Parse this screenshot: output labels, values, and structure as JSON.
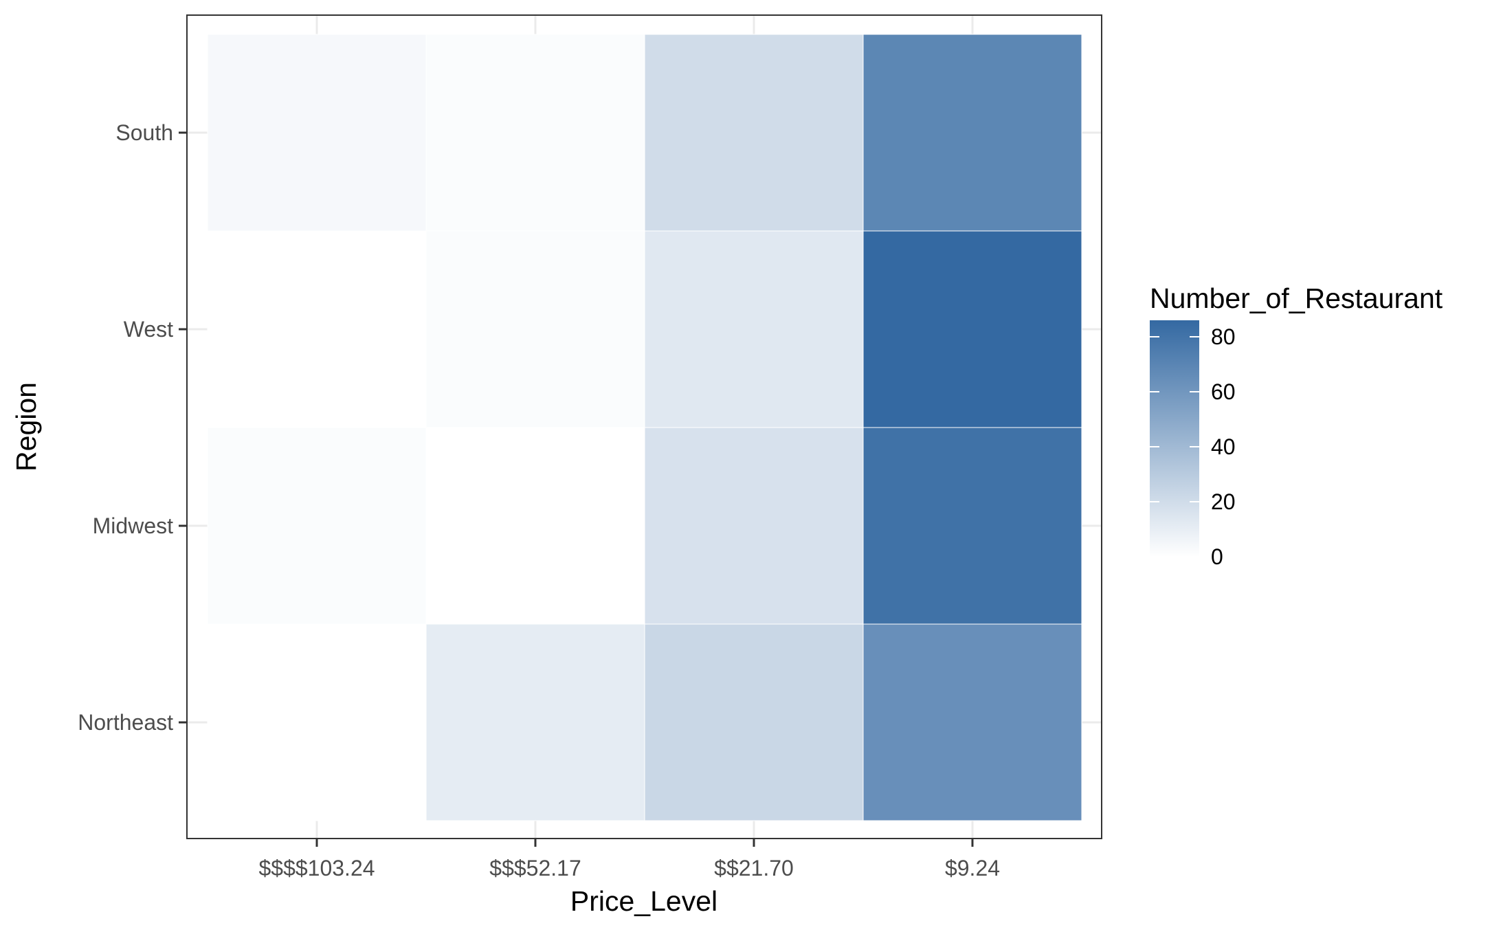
{
  "chart_data": {
    "type": "heatmap",
    "title": "",
    "xlabel": "Price_Level",
    "ylabel": "Region",
    "x_categories": [
      "$$$$103.24",
      "$$$52.17",
      "$$21.70",
      "$9.24"
    ],
    "y_categories": [
      "Northeast",
      "Midwest",
      "West",
      "South"
    ],
    "cells": [
      {
        "x": "$$$$103.24",
        "y": "South",
        "value": 4
      },
      {
        "x": "$$$52.17",
        "y": "South",
        "value": 2
      },
      {
        "x": "$$21.70",
        "y": "South",
        "value": 20
      },
      {
        "x": "$9.24",
        "y": "South",
        "value": 69
      },
      {
        "x": "$$$$103.24",
        "y": "West",
        "value": 0
      },
      {
        "x": "$$$52.17",
        "y": "West",
        "value": 2
      },
      {
        "x": "$$21.70",
        "y": "West",
        "value": 13
      },
      {
        "x": "$9.24",
        "y": "West",
        "value": 86
      },
      {
        "x": "$$$$103.24",
        "y": "Midwest",
        "value": 2
      },
      {
        "x": "$$$52.17",
        "y": "Midwest",
        "value": 0
      },
      {
        "x": "$$21.70",
        "y": "Midwest",
        "value": 17
      },
      {
        "x": "$9.24",
        "y": "Midwest",
        "value": 81
      },
      {
        "x": "$$$$103.24",
        "y": "Northeast",
        "value": 0
      },
      {
        "x": "$$$52.17",
        "y": "Northeast",
        "value": 11
      },
      {
        "x": "$$21.70",
        "y": "Northeast",
        "value": 23
      },
      {
        "x": "$9.24",
        "y": "Northeast",
        "value": 64
      }
    ],
    "legend": {
      "title": "Number_of_Restaurant",
      "ticks": [
        0,
        20,
        40,
        60,
        80
      ],
      "range": [
        0,
        86
      ],
      "position": "right"
    },
    "colors": {
      "low": "#ffffff",
      "high": "#3469a2"
    },
    "grid": true
  }
}
